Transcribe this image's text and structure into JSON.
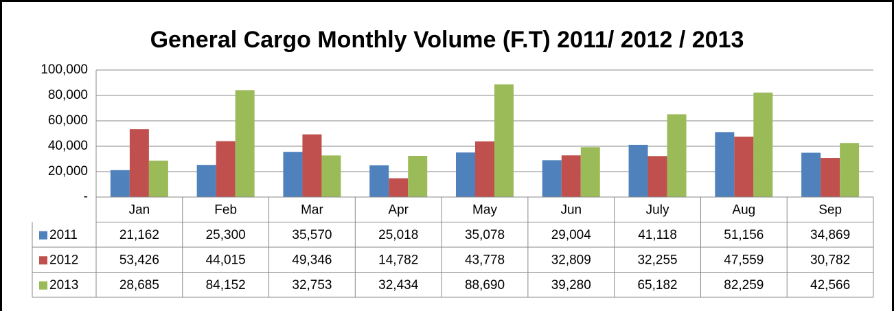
{
  "chart_data": {
    "type": "bar",
    "title": "General Cargo Monthly Volume (F.T) 2011/ 2012 / 2013",
    "categories": [
      "Jan",
      "Feb",
      "Mar",
      "Apr",
      "May",
      "Jun",
      "July",
      "Aug",
      "Sep"
    ],
    "series": [
      {
        "name": "2011",
        "color": "#4f81bd",
        "values": [
          21162,
          25300,
          35570,
          25018,
          35078,
          29004,
          41118,
          51156,
          34869
        ],
        "value_labels": [
          "21,162",
          "25,300",
          "35,570",
          "25,018",
          "35,078",
          "29,004",
          "41,118",
          "51,156",
          "34,869"
        ]
      },
      {
        "name": "2012",
        "color": "#c0504d",
        "values": [
          53426,
          44015,
          49346,
          14782,
          43778,
          32809,
          32255,
          47559,
          30782
        ],
        "value_labels": [
          "53,426",
          "44,015",
          "49,346",
          "14,782",
          "43,778",
          "32,809",
          "32,255",
          "47,559",
          "30,782"
        ]
      },
      {
        "name": "2013",
        "color": "#9bbb59",
        "values": [
          28685,
          84152,
          32753,
          32434,
          88690,
          39280,
          65182,
          82259,
          42566
        ],
        "value_labels": [
          "28,685",
          "84,152",
          "32,753",
          "32,434",
          "88,690",
          "39,280",
          "65,182",
          "82,259",
          "42,566"
        ]
      }
    ],
    "ylim": [
      0,
      100000
    ],
    "yticks": [
      {
        "value": 0,
        "label": "-"
      },
      {
        "value": 20000,
        "label": "20,000"
      },
      {
        "value": 40000,
        "label": "40,000"
      },
      {
        "value": 60000,
        "label": "60,000"
      },
      {
        "value": 80000,
        "label": "80,000"
      },
      {
        "value": 100000,
        "label": "100,000"
      }
    ],
    "grid": true
  }
}
